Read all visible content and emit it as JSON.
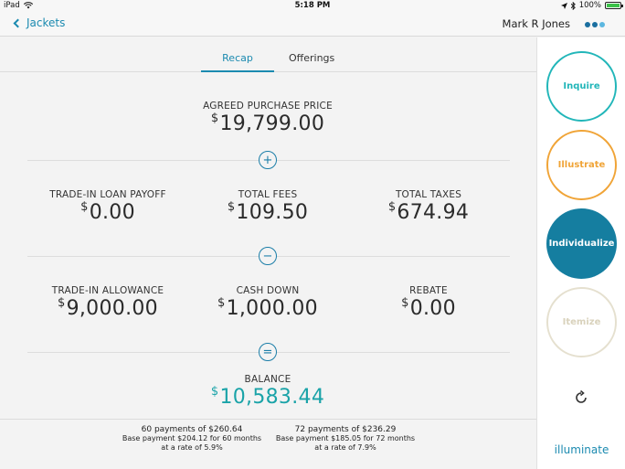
{
  "status_bar": {
    "device": "iPad",
    "time": "5:18 PM",
    "battery": "100%"
  },
  "nav": {
    "back_label": "Jackets",
    "user_name": "Mark R Jones"
  },
  "tabs": [
    {
      "label": "Recap"
    },
    {
      "label": "Offerings"
    }
  ],
  "recap": {
    "currency": "$",
    "agreed_price": {
      "label": "AGREED PURCHASE PRICE",
      "value": "19,799.00"
    },
    "row1": [
      {
        "label": "TRADE-IN LOAN PAYOFF",
        "value": "0.00"
      },
      {
        "label": "TOTAL FEES",
        "value": "109.50"
      },
      {
        "label": "TOTAL TAXES",
        "value": "674.94"
      }
    ],
    "row2": [
      {
        "label": "TRADE-IN ALLOWANCE",
        "value": "9,000.00"
      },
      {
        "label": "CASH DOWN",
        "value": "1,000.00"
      },
      {
        "label": "REBATE",
        "value": "0.00"
      }
    ],
    "balance": {
      "label": "BALANCE",
      "value": "10,583.44"
    },
    "operators": {
      "plus": "+",
      "minus": "−",
      "equals": "="
    }
  },
  "payments": [
    {
      "line1": "60 payments of $260.64",
      "line2": "Base payment $204.12 for 60 months",
      "line3": "at a rate of 5.9%"
    },
    {
      "line1": "72 payments of $236.29",
      "line2": "Base payment $185.05 for 72 months",
      "line3": "at a rate of 7.9%"
    }
  ],
  "sidebar": {
    "actions": [
      {
        "label": "Inquire",
        "color": "#22b6b9"
      },
      {
        "label": "Illustrate",
        "color": "#f0a437"
      },
      {
        "label": "Individualize",
        "color": "#157ea0"
      },
      {
        "label": "Itemize",
        "color": "#d9d2bc"
      }
    ],
    "refresh_icon": "refresh-icon",
    "brand": "illuminate"
  }
}
